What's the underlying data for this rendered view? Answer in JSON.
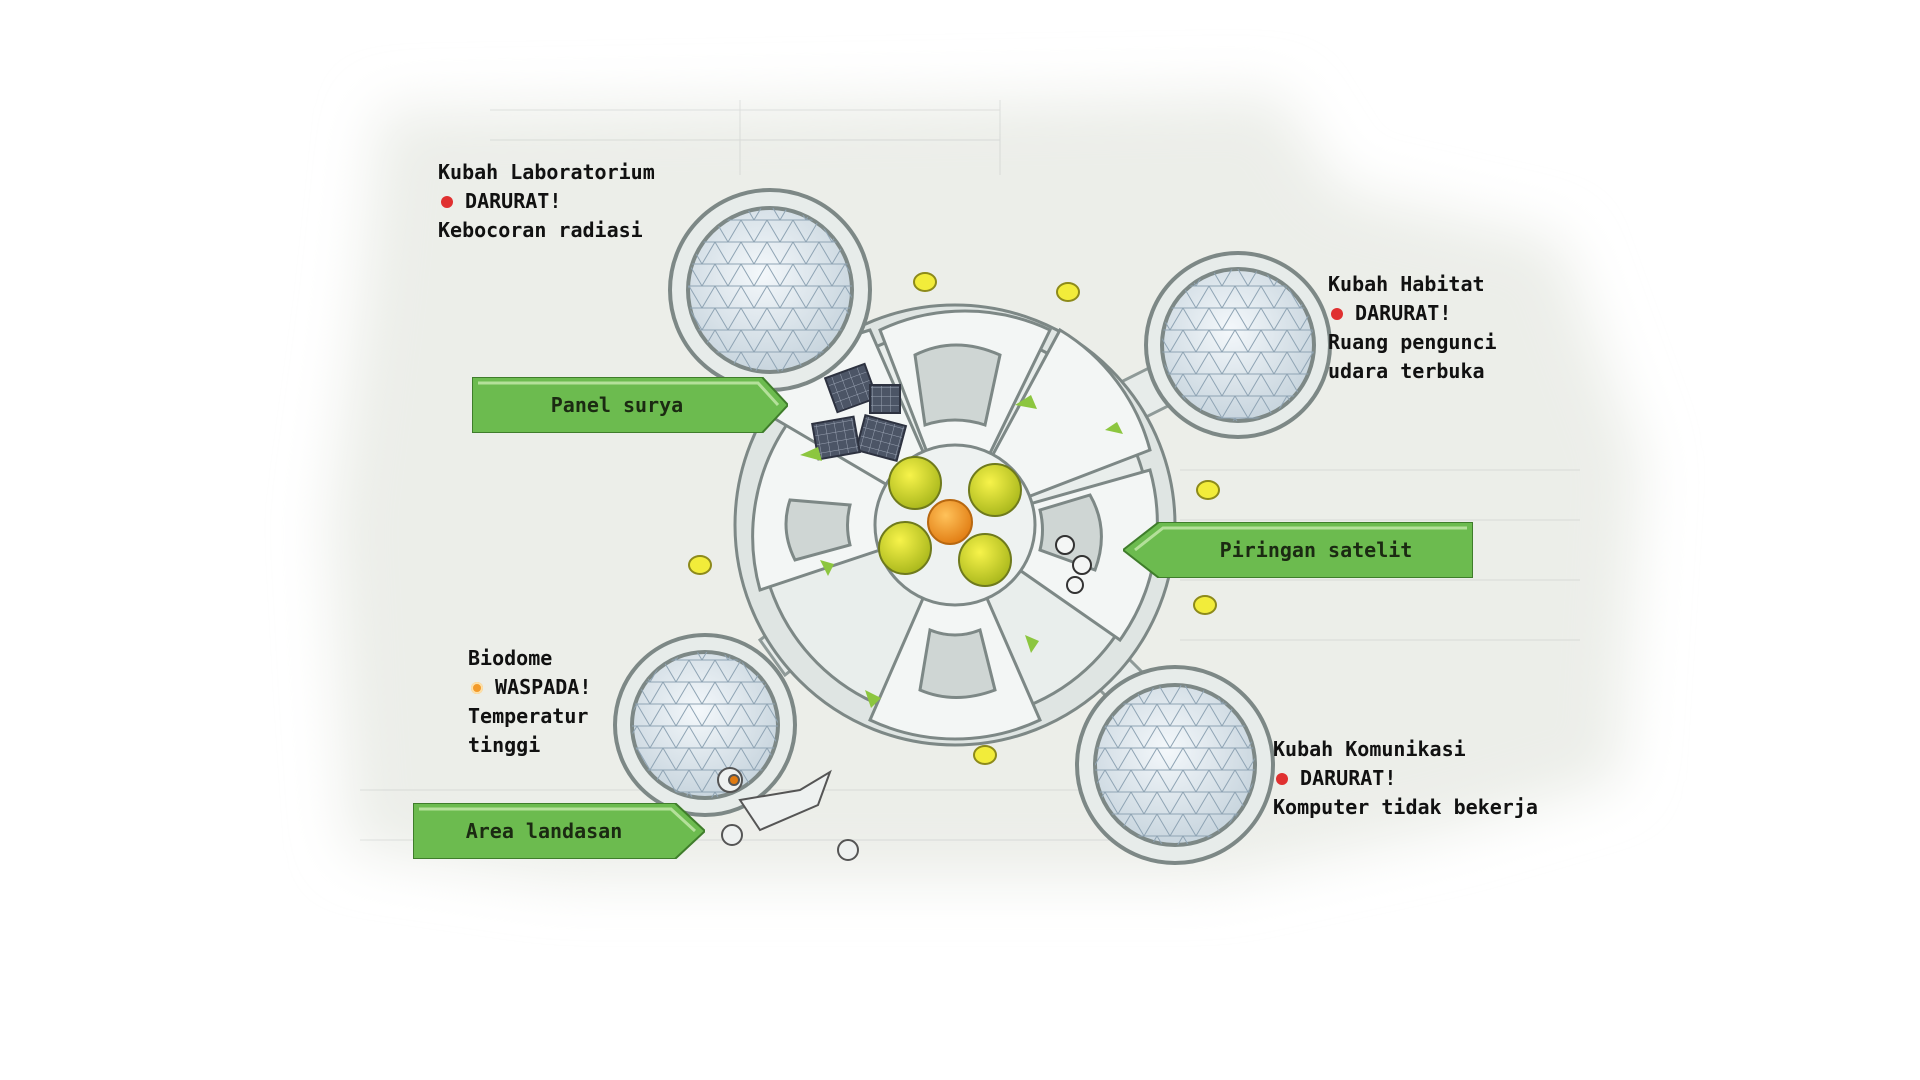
{
  "callouts": {
    "solar_panel": "Panel surya",
    "satellite_dish": "Piringan satelit",
    "landing_area": "Area landasan"
  },
  "domes": {
    "laboratory": {
      "title": "Kubah Laboratorium",
      "status": "DARURAT!",
      "status_level": "emergency",
      "detail": [
        "Kebocoran radiasi"
      ]
    },
    "habitat": {
      "title": "Kubah Habitat",
      "status": "DARURAT!",
      "status_level": "emergency",
      "detail": [
        "Ruang pengunci",
        "udara terbuka"
      ]
    },
    "biodome": {
      "title": "Biodome",
      "status": "WASPADA!",
      "status_level": "warning",
      "detail": [
        "Temperatur",
        "tinggi"
      ]
    },
    "communication": {
      "title": "Kubah Komunikasi",
      "status": "DARURAT!",
      "status_level": "emergency",
      "detail": [
        "Komputer tidak bekerja"
      ]
    }
  },
  "colors": {
    "emergency": "#e03030",
    "warning": "#f29a2a",
    "callout_green": "#6cbb4f",
    "paper": "#f1f2ee"
  }
}
